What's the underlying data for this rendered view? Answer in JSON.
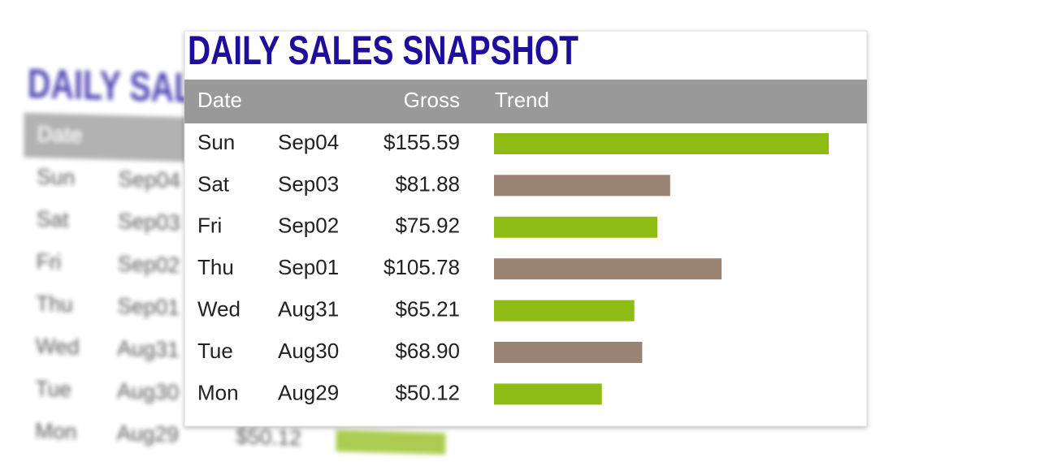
{
  "chart_data": {
    "type": "bar",
    "title": "DAILY SALES SNAPSHOT",
    "columns": [
      "Date",
      "Gross",
      "Trend"
    ],
    "categories": [
      "Sun",
      "Sat",
      "Fri",
      "Thu",
      "Wed",
      "Tue",
      "Mon"
    ],
    "dates": [
      "Sep04",
      "Sep03",
      "Sep02",
      "Sep01",
      "Aug31",
      "Aug30",
      "Aug29"
    ],
    "values": [
      155.59,
      81.88,
      75.92,
      105.78,
      65.21,
      68.9,
      50.12
    ],
    "value_labels": [
      "$155.59",
      "$81.88",
      "$75.92",
      "$105.78",
      "$65.21",
      "$68.90",
      "$50.12"
    ],
    "colors": [
      "#8fbc14",
      "#9a8373",
      "#8fbc14",
      "#9a8373",
      "#8fbc14",
      "#9a8373",
      "#8fbc14"
    ]
  }
}
